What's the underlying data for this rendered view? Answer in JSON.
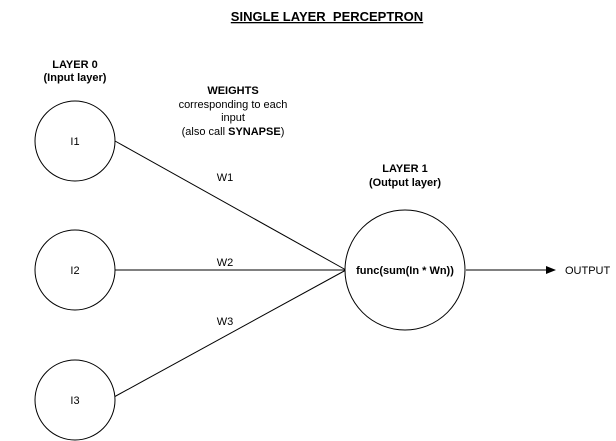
{
  "title": "SINGLE LAYER  PERCEPTRON",
  "layer0": {
    "heading": "LAYER 0",
    "subheading": "(Input layer)"
  },
  "layer1": {
    "heading": "LAYER 1",
    "subheading": "(Output layer)"
  },
  "weights_note": {
    "heading": "WEIGHTS",
    "line1": "corresponding to each",
    "line2": "input",
    "line3_pre": "(also call ",
    "line3_bold": "SYNAPSE",
    "line3_post": ")"
  },
  "inputs": [
    "I1",
    "I2",
    "I3"
  ],
  "weights": [
    "W1",
    "W2",
    "W3"
  ],
  "output_node": "func(sum(In * Wn))",
  "output_label": "OUTPUT",
  "colors": {
    "stroke": "#000000",
    "background": "#ffffff"
  }
}
